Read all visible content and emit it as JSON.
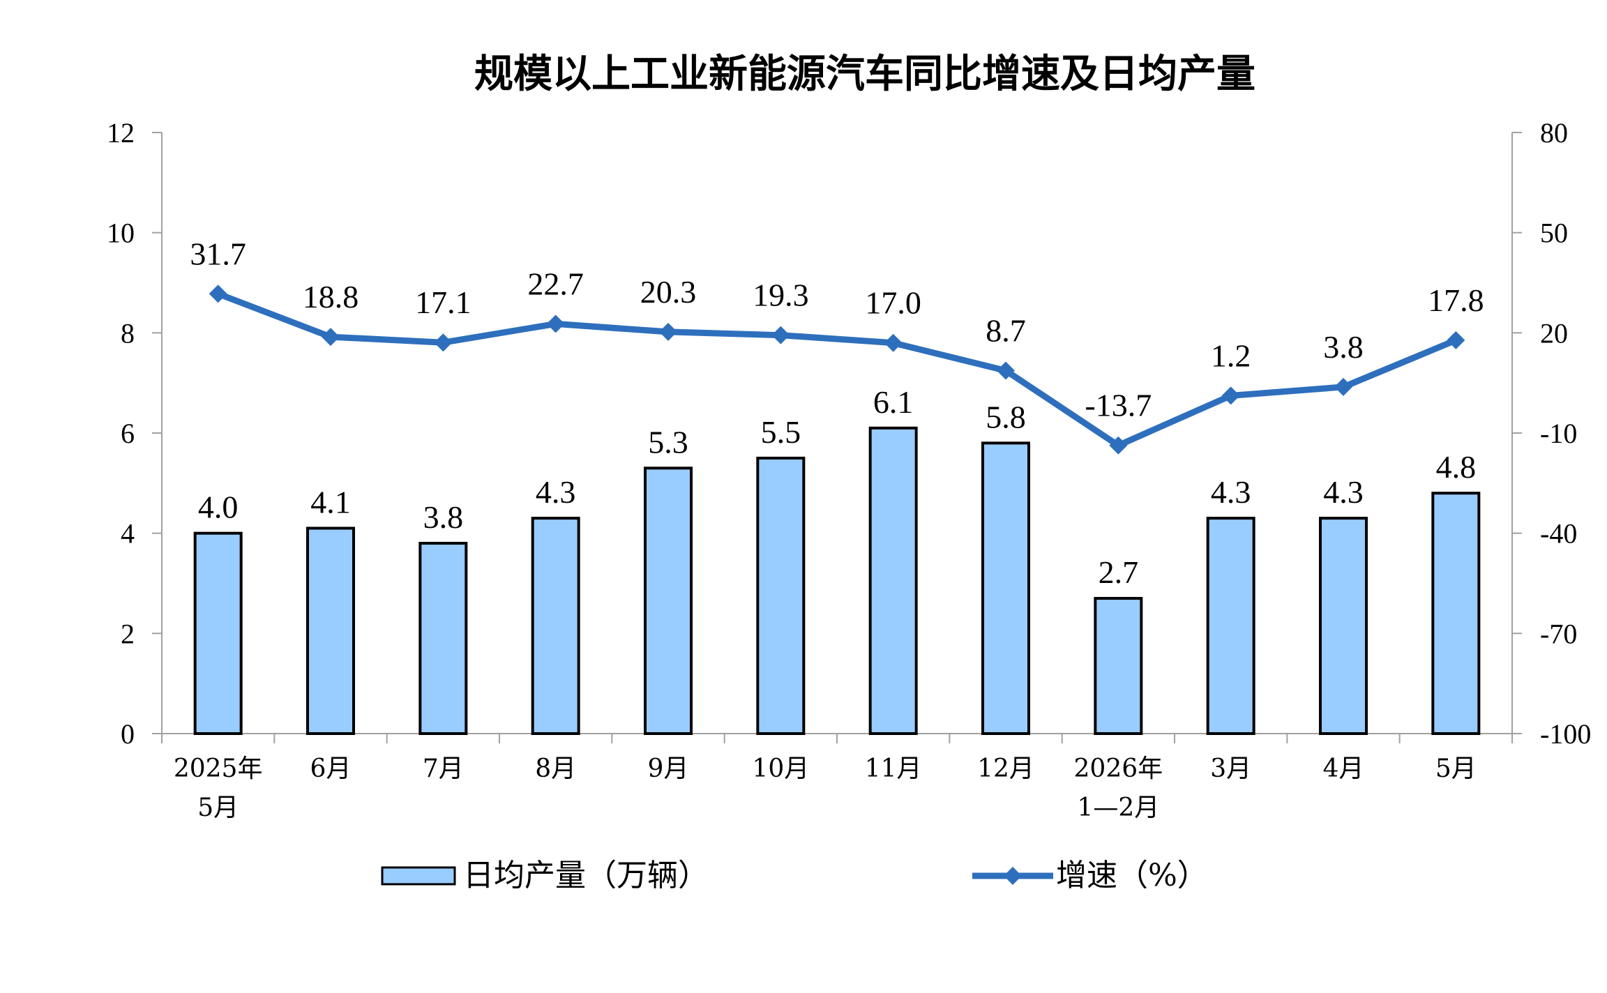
{
  "chart_data": {
    "type": "bar+line",
    "title": "规模以上工业新能源汽车同比增速及日均产量",
    "categories": [
      [
        "2025年",
        "5月"
      ],
      [
        "6月"
      ],
      [
        "7月"
      ],
      [
        "8月"
      ],
      [
        "9月"
      ],
      [
        "10月"
      ],
      [
        "11月"
      ],
      [
        "12月"
      ],
      [
        "2026年",
        "1—2月"
      ],
      [
        "3月"
      ],
      [
        "4月"
      ],
      [
        "5月"
      ]
    ],
    "left_axis": {
      "min": 0,
      "max": 12,
      "ticks": [
        "0",
        "2",
        "4",
        "6",
        "8",
        "10",
        "12"
      ]
    },
    "right_axis": {
      "min": -100,
      "max": 80,
      "ticks": [
        "-100",
        "-70",
        "-40",
        "-10",
        "20",
        "50",
        "80"
      ]
    },
    "bars": {
      "name": "日均产量（万辆）",
      "axis": "left",
      "color": "#99ccff",
      "values": [
        4.0,
        4.1,
        3.8,
        4.3,
        5.3,
        5.5,
        6.1,
        5.8,
        2.7,
        4.3,
        4.3,
        4.8
      ],
      "labels": [
        "4.0",
        "4.1",
        "3.8",
        "4.3",
        "5.3",
        "5.5",
        "6.1",
        "5.8",
        "2.7",
        "4.3",
        "4.3",
        "4.8"
      ]
    },
    "line": {
      "name": "增速（%）",
      "axis": "right",
      "color": "#2e6fbd",
      "values": [
        31.7,
        18.8,
        17.1,
        22.7,
        20.3,
        19.3,
        17.0,
        8.7,
        -13.7,
        1.2,
        3.8,
        17.8
      ],
      "labels": [
        "31.7",
        "18.8",
        "17.1",
        "22.7",
        "20.3",
        "19.3",
        "17.0",
        "8.7",
        "-13.7",
        "1.2",
        "3.8",
        "17.8"
      ]
    },
    "grid": false,
    "legend": "bottom"
  }
}
